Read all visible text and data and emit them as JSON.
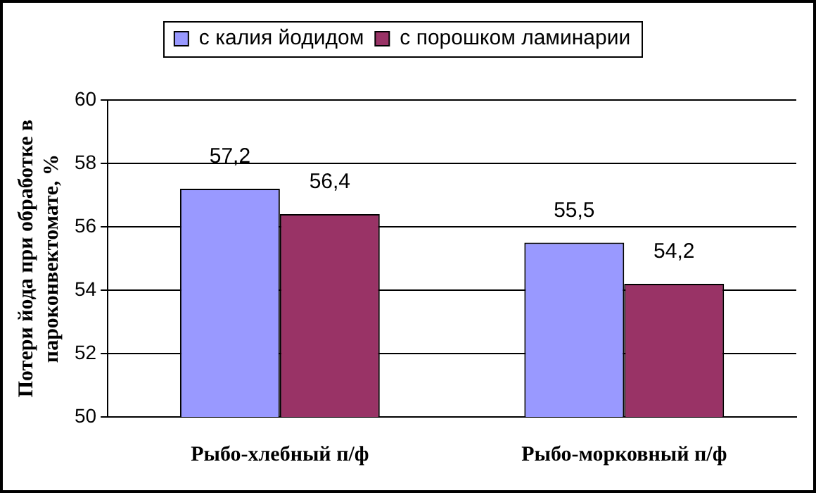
{
  "chart_data": {
    "type": "bar",
    "ylabel": "Потери йода при обработке в пароконвектомате, %",
    "categories": [
      "Рыбо-хлебный п/ф",
      "Рыбо-морковный п/ф"
    ],
    "series": [
      {
        "name": "с калия йодидом",
        "color": "#9999ff",
        "values": [
          57.2,
          55.5
        ],
        "value_labels": [
          "57,2",
          "55,5"
        ]
      },
      {
        "name": "с порошком ламинарии",
        "color": "#993366",
        "values": [
          56.4,
          54.2
        ],
        "value_labels": [
          "56,4",
          "54,2"
        ]
      }
    ],
    "ylim": [
      50,
      60
    ],
    "yticks": [
      50,
      52,
      54,
      56,
      58,
      60
    ],
    "grid": "y",
    "legend": "top"
  }
}
